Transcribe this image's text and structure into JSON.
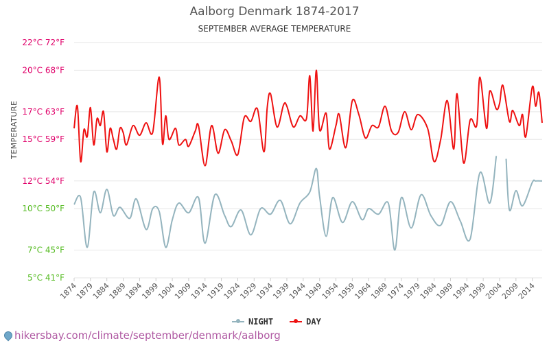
{
  "header": {
    "title": "Aalborg Denmark 1874-2017",
    "subtitle": "SEPTEMBER AVERAGE TEMPERATURE"
  },
  "footer": {
    "source": "hikersbay.com/climate/september/denmark/aalborg"
  },
  "colors": {
    "day": "#ee1111",
    "night": "#94b4be",
    "tick_upper": "#e0006a",
    "tick_lower": "#55bb22",
    "grid": "#e6e6e6"
  },
  "chart_data": {
    "type": "line",
    "title": "Aalborg Denmark 1874-2017",
    "subtitle": "SEPTEMBER AVERAGE TEMPERATURE",
    "xlabel": "",
    "ylabel": "TEMPERATURE",
    "ylim": [
      5,
      22
    ],
    "yticks": [
      {
        "value": 22,
        "label": "22°C 72°F"
      },
      {
        "value": 20,
        "label": "20°C 68°F"
      },
      {
        "value": 17,
        "label": "17°C 63°F"
      },
      {
        "value": 15,
        "label": "15°C 59°F"
      },
      {
        "value": 12,
        "label": "12°C 54°F"
      },
      {
        "value": 10,
        "label": "10°C 50°F"
      },
      {
        "value": 7,
        "label": "7°C 45°F"
      },
      {
        "value": 5,
        "label": "5°C 41°F"
      }
    ],
    "xticks": [
      1874,
      1879,
      1884,
      1889,
      1894,
      1899,
      1904,
      1909,
      1914,
      1919,
      1924,
      1929,
      1934,
      1939,
      1944,
      1949,
      1954,
      1959,
      1964,
      1969,
      1974,
      1979,
      1984,
      1989,
      1994,
      1999,
      2004,
      2009,
      2014
    ],
    "xlim": [
      1874,
      2017
    ],
    "grid": true,
    "legend_position": "bottom",
    "series": [
      {
        "name": "NIGHT",
        "x": [
          1874,
          1876,
          1878,
          1880,
          1882,
          1884,
          1886,
          1888,
          1891,
          1893,
          1896,
          1898,
          1900,
          1902,
          1904,
          1906,
          1909,
          1912,
          1914,
          1917,
          1920,
          1922,
          1925,
          1928,
          1931,
          1934,
          1937,
          1940,
          1943,
          1946,
          1948,
          1949,
          1951,
          1953,
          1956,
          1959,
          1962,
          1964,
          1967,
          1970,
          1972,
          1974,
          1977,
          1980,
          1983,
          1986,
          1989,
          1992,
          1995,
          1998,
          2001,
          2003,
          2006,
          2007,
          2009,
          2011,
          2014,
          2015,
          2017
        ],
        "y": [
          10.3,
          10.8,
          7.2,
          11.2,
          9.7,
          11.4,
          9.5,
          10.1,
          9.3,
          10.7,
          8.5,
          10.0,
          9.8,
          7.2,
          9.2,
          10.4,
          9.7,
          10.8,
          7.5,
          11.0,
          9.5,
          8.7,
          9.9,
          8.1,
          10.0,
          9.6,
          10.6,
          8.9,
          10.4,
          11.2,
          12.9,
          10.9,
          8.0,
          10.8,
          9.0,
          10.5,
          9.2,
          10.0,
          9.6,
          10.4,
          7.0,
          10.8,
          8.6,
          11.0,
          9.5,
          8.8,
          10.5,
          9.1,
          7.8,
          12.6,
          10.4,
          13.8,
          13.6,
          9.9,
          11.3,
          10.2,
          11.9,
          12.0,
          12.0
        ]
      },
      {
        "name": "DAY",
        "x": [
          1874,
          1875,
          1876,
          1877,
          1878,
          1879,
          1880,
          1881,
          1882,
          1883,
          1884,
          1885,
          1886,
          1887,
          1888,
          1889,
          1890,
          1892,
          1894,
          1896,
          1898,
          1900,
          1901,
          1902,
          1903,
          1905,
          1906,
          1908,
          1909,
          1911,
          1912,
          1914,
          1916,
          1918,
          1920,
          1922,
          1924,
          1926,
          1928,
          1930,
          1932,
          1933,
          1934,
          1936,
          1938,
          1939,
          1941,
          1943,
          1945,
          1946,
          1947,
          1948,
          1949,
          1951,
          1952,
          1954,
          1955,
          1957,
          1959,
          1961,
          1963,
          1965,
          1967,
          1969,
          1971,
          1973,
          1975,
          1977,
          1979,
          1982,
          1984,
          1986,
          1988,
          1990,
          1991,
          1993,
          1995,
          1997,
          1998,
          2000,
          2001,
          2003,
          2004,
          2005,
          2007,
          2008,
          2010,
          2011,
          2012,
          2014,
          2015,
          2016,
          2017
        ],
        "y": [
          15.8,
          17.4,
          13.4,
          15.7,
          15.2,
          17.3,
          14.6,
          16.5,
          16.0,
          17.0,
          14.1,
          15.8,
          15.0,
          14.3,
          15.8,
          15.5,
          14.6,
          16.0,
          15.3,
          16.2,
          15.5,
          19.5,
          14.7,
          16.7,
          15.0,
          15.8,
          14.6,
          15.0,
          14.5,
          15.6,
          16.0,
          13.1,
          16.0,
          14.0,
          15.7,
          14.9,
          13.9,
          16.6,
          16.3,
          17.2,
          14.1,
          17.3,
          18.3,
          15.9,
          17.5,
          17.4,
          15.9,
          16.7,
          16.5,
          19.6,
          15.6,
          20.0,
          15.7,
          16.9,
          14.3,
          16.0,
          16.8,
          14.4,
          17.8,
          16.8,
          15.1,
          16.0,
          15.9,
          17.4,
          15.6,
          15.5,
          17.0,
          15.7,
          16.8,
          15.8,
          13.4,
          15.0,
          17.8,
          14.3,
          18.3,
          13.3,
          16.4,
          16.0,
          19.5,
          15.8,
          18.5,
          17.2,
          17.6,
          18.9,
          16.3,
          17.1,
          16.0,
          16.8,
          15.2,
          18.8,
          17.4,
          18.4,
          16.2
        ]
      }
    ]
  }
}
